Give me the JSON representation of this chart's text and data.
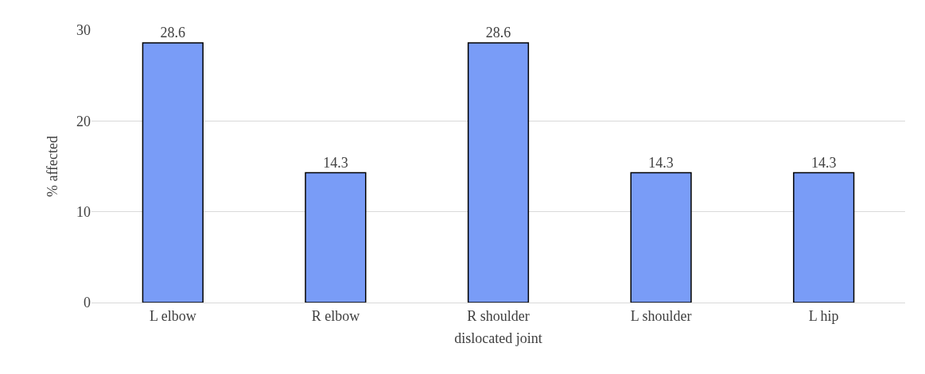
{
  "chart_data": {
    "type": "bar",
    "xlabel": "dislocated joint",
    "ylabel": "% affected",
    "categories": [
      "L elbow",
      "R elbow",
      "R shoulder",
      "L shoulder",
      "L hip"
    ],
    "values": [
      28.6,
      14.3,
      28.6,
      14.3,
      14.3
    ],
    "color": "#799cf7",
    "ylim": [
      0,
      30
    ],
    "yticks": [
      0,
      10,
      20,
      30
    ],
    "grid": "y",
    "data_labels": true,
    "legend": false
  }
}
